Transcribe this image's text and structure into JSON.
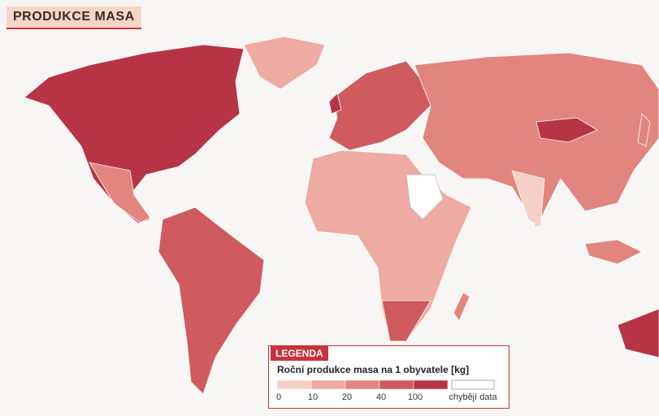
{
  "header": {
    "title": "PRODUKCE MASA"
  },
  "legend": {
    "tab": "LEGENDA",
    "title": "Roční produkce masa na 1 obyvatele [kg]",
    "ticks": [
      0,
      10,
      20,
      40,
      100
    ],
    "colors": [
      "#f4d0c6",
      "#eeaba2",
      "#e2857e",
      "#cf5b5f",
      "#b73447"
    ],
    "missing_label": "chybějí data",
    "missing_color": "#ffffff"
  }
}
